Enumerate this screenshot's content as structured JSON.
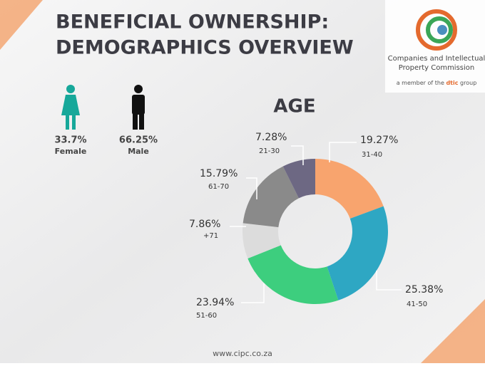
{
  "header": {
    "title_lines": [
      "BENEFICIAL OWNERSHIP:",
      "DEMOGRAPHICS OVERVIEW"
    ]
  },
  "logo": {
    "name_lines": [
      "Companies and Intellectual",
      "Property Commission"
    ],
    "tagline_start": "a member of the",
    "tagline_brand": "dtic",
    "tagline_end": "group"
  },
  "gender": [
    {
      "percent": "33.7%",
      "label": "Female"
    },
    {
      "percent": "66.25%",
      "label": "Male"
    }
  ],
  "chart_data": {
    "type": "pie",
    "title": "AGE",
    "categories": [
      "31-40",
      "41-50",
      "51-60",
      "+71",
      "61-70",
      "21-30"
    ],
    "values": [
      19.27,
      25.38,
      23.94,
      7.86,
      15.79,
      7.28
    ],
    "value_labels": [
      "19.27%",
      "25.38%",
      "23.94%",
      "7.86%",
      "15.79%",
      "7.28%"
    ],
    "colors": [
      "#f8a46e",
      "#2ea7c3",
      "#3dce7e",
      "#dcdcdc",
      "#8a8a8a",
      "#6d6883"
    ],
    "donut": true
  },
  "footer": {
    "url": "www.cipc.co.za"
  }
}
